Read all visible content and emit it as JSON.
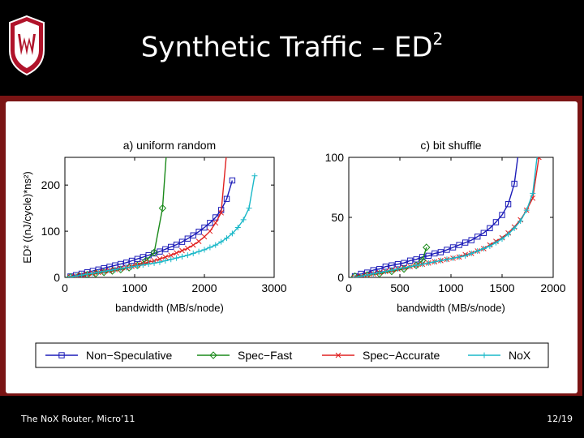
{
  "slide": {
    "title_main": "Synthetic Traffic – ED",
    "title_sup": "2",
    "footer_left": "The NoX Router, Micro’11",
    "footer_right": "12/19"
  },
  "colors": {
    "crest_red": "#b0132a",
    "frame": "#7a1414"
  },
  "legend": [
    "Non−Speculative",
    "Spec−Fast",
    "Spec−Accurate",
    "NoX"
  ],
  "chart_data": [
    {
      "type": "line",
      "title": "a) uniform random",
      "xlabel": "bandwidth (MB/s/node)",
      "ylabel": "ED² ((nJ/cycle)*ns²)",
      "xlim": [
        0,
        3000
      ],
      "ylim": [
        0,
        260
      ],
      "xticks": [
        0,
        1000,
        2000,
        3000
      ],
      "yticks": [
        0,
        100,
        200
      ],
      "series": [
        {
          "name": "Non−Speculative",
          "color": "#1c1cb8",
          "marker": "square",
          "x": [
            80,
            160,
            240,
            320,
            400,
            480,
            560,
            640,
            720,
            800,
            880,
            960,
            1040,
            1120,
            1200,
            1280,
            1360,
            1440,
            1520,
            1600,
            1680,
            1760,
            1840,
            1920,
            2000,
            2080,
            2160,
            2240,
            2320,
            2400
          ],
          "y": [
            2,
            5,
            8,
            11,
            14,
            17,
            20,
            23,
            26,
            29,
            32,
            36,
            40,
            44,
            48,
            52,
            56,
            61,
            66,
            71,
            77,
            84,
            91,
            99,
            108,
            118,
            130,
            146,
            170,
            210
          ]
        },
        {
          "name": "Spec−Fast",
          "color": "#1a8a1a",
          "marker": "diamond",
          "x": [
            80,
            200,
            320,
            440,
            560,
            680,
            800,
            920,
            1040,
            1160,
            1280,
            1400,
            1470
          ],
          "y": [
            1,
            3,
            6,
            8,
            11,
            14,
            17,
            21,
            26,
            36,
            54,
            150,
            300
          ]
        },
        {
          "name": "Spec−Accurate",
          "color": "#e02020",
          "marker": "x",
          "x": [
            80,
            160,
            240,
            320,
            400,
            480,
            560,
            640,
            720,
            800,
            880,
            960,
            1040,
            1120,
            1200,
            1280,
            1360,
            1440,
            1520,
            1600,
            1680,
            1760,
            1840,
            1920,
            2000,
            2080,
            2160,
            2240,
            2330
          ],
          "y": [
            1,
            3,
            5,
            7,
            9,
            11,
            13,
            15,
            17,
            19,
            21,
            24,
            27,
            30,
            33,
            36,
            40,
            44,
            48,
            53,
            58,
            63,
            70,
            78,
            88,
            100,
            118,
            140,
            290
          ]
        },
        {
          "name": "NoX",
          "color": "#1ab8c8",
          "marker": "plus",
          "x": [
            80,
            160,
            240,
            320,
            400,
            480,
            560,
            640,
            720,
            800,
            880,
            960,
            1040,
            1120,
            1200,
            1280,
            1360,
            1440,
            1520,
            1600,
            1680,
            1760,
            1840,
            1920,
            2000,
            2080,
            2160,
            2240,
            2320,
            2400,
            2480,
            2560,
            2640,
            2720
          ],
          "y": [
            1,
            3,
            5,
            7,
            9,
            11,
            13,
            15,
            17,
            19,
            21,
            23,
            25,
            27,
            29,
            31,
            33,
            36,
            39,
            42,
            45,
            48,
            52,
            56,
            60,
            65,
            70,
            77,
            85,
            95,
            108,
            125,
            150,
            220
          ]
        }
      ]
    },
    {
      "type": "line",
      "title": "c) bit shuffle",
      "xlabel": "bandwidth (MB/s/node)",
      "ylabel": "",
      "xlim": [
        0,
        2000
      ],
      "ylim": [
        0,
        100
      ],
      "xticks": [
        0,
        500,
        1000,
        1500,
        2000
      ],
      "yticks": [
        0,
        50,
        100
      ],
      "series": [
        {
          "name": "Non−Speculative",
          "color": "#1c1cb8",
          "marker": "square",
          "x": [
            60,
            120,
            180,
            240,
            300,
            360,
            420,
            480,
            540,
            600,
            660,
            720,
            780,
            840,
            900,
            960,
            1020,
            1080,
            1140,
            1200,
            1260,
            1320,
            1380,
            1440,
            1500,
            1560,
            1620,
            1700
          ],
          "y": [
            1,
            3,
            4,
            6,
            7,
            9,
            10,
            11,
            12,
            14,
            15,
            17,
            18,
            20,
            21,
            23,
            25,
            27,
            29,
            31,
            34,
            37,
            41,
            46,
            52,
            61,
            78,
            130
          ]
        },
        {
          "name": "Spec−Fast",
          "color": "#1a8a1a",
          "marker": "diamond",
          "x": [
            60,
            180,
            300,
            420,
            540,
            660,
            720,
            760
          ],
          "y": [
            1,
            2,
            3,
            5,
            7,
            10,
            14,
            25
          ]
        },
        {
          "name": "Spec−Accurate",
          "color": "#e02020",
          "marker": "x",
          "x": [
            60,
            120,
            180,
            240,
            300,
            360,
            420,
            480,
            540,
            600,
            660,
            720,
            780,
            840,
            900,
            960,
            1020,
            1080,
            1140,
            1200,
            1260,
            1320,
            1380,
            1440,
            1500,
            1560,
            1620,
            1680,
            1740,
            1800,
            1860
          ],
          "y": [
            0,
            1,
            2,
            3,
            4,
            5,
            6,
            7,
            8,
            9,
            10,
            11,
            12,
            13,
            14,
            15,
            16,
            17,
            19,
            20,
            22,
            24,
            27,
            30,
            33,
            37,
            42,
            48,
            56,
            66,
            100
          ]
        },
        {
          "name": "NoX",
          "color": "#1ab8c8",
          "marker": "plus",
          "x": [
            60,
            120,
            180,
            240,
            300,
            360,
            420,
            480,
            540,
            600,
            660,
            720,
            780,
            840,
            900,
            960,
            1020,
            1080,
            1140,
            1200,
            1260,
            1320,
            1380,
            1440,
            1500,
            1560,
            1620,
            1680,
            1740,
            1800,
            1870
          ],
          "y": [
            0,
            1,
            2,
            3,
            4,
            5,
            6,
            7,
            8,
            9,
            10,
            11,
            12,
            13,
            14,
            15,
            16,
            17,
            18,
            20,
            22,
            24,
            26,
            29,
            32,
            36,
            41,
            47,
            56,
            70,
            120
          ]
        }
      ]
    }
  ]
}
